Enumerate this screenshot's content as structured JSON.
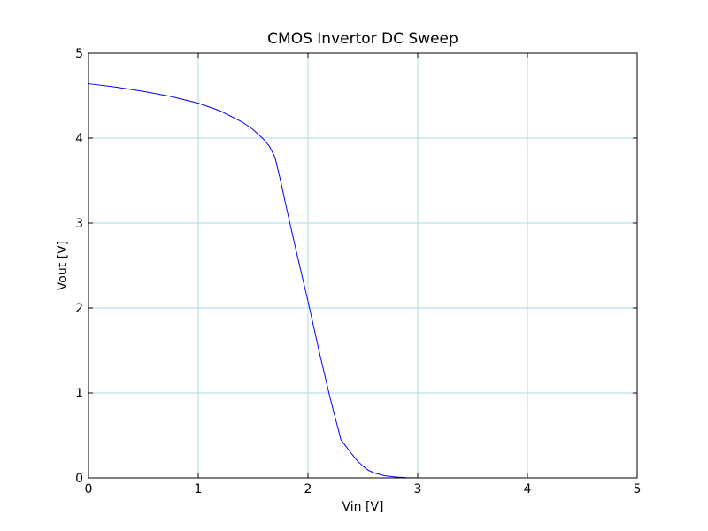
{
  "chart_data": {
    "type": "line",
    "title": "CMOS Invertor DC Sweep",
    "xlabel": "Vin [V]",
    "ylabel": "Vout [V]",
    "xlim": [
      0,
      5
    ],
    "ylim": [
      0,
      5
    ],
    "xticks": [
      "0",
      "1",
      "2",
      "3",
      "4",
      "5"
    ],
    "yticks": [
      "0",
      "1",
      "2",
      "3",
      "4",
      "5"
    ],
    "grid": true,
    "grid_color": "#add8e6",
    "series": [
      {
        "color": "#0000ff",
        "x": [
          0,
          0.25,
          0.5,
          0.75,
          1.0,
          1.2,
          1.4,
          1.5,
          1.6,
          1.65,
          1.7,
          1.75,
          1.8,
          1.9,
          2.0,
          2.1,
          2.2,
          2.3,
          2.4,
          2.45,
          2.5,
          2.55,
          2.6,
          2.7,
          2.8,
          2.9,
          3.0,
          4.0,
          5.0
        ],
        "y": [
          4.64,
          4.6,
          4.55,
          4.49,
          4.41,
          4.32,
          4.19,
          4.1,
          3.98,
          3.9,
          3.77,
          3.5,
          3.2,
          2.63,
          2.08,
          1.5,
          0.95,
          0.45,
          0.28,
          0.2,
          0.14,
          0.09,
          0.06,
          0.025,
          0.01,
          0.003,
          0.0,
          0.0,
          0.0
        ]
      }
    ]
  }
}
